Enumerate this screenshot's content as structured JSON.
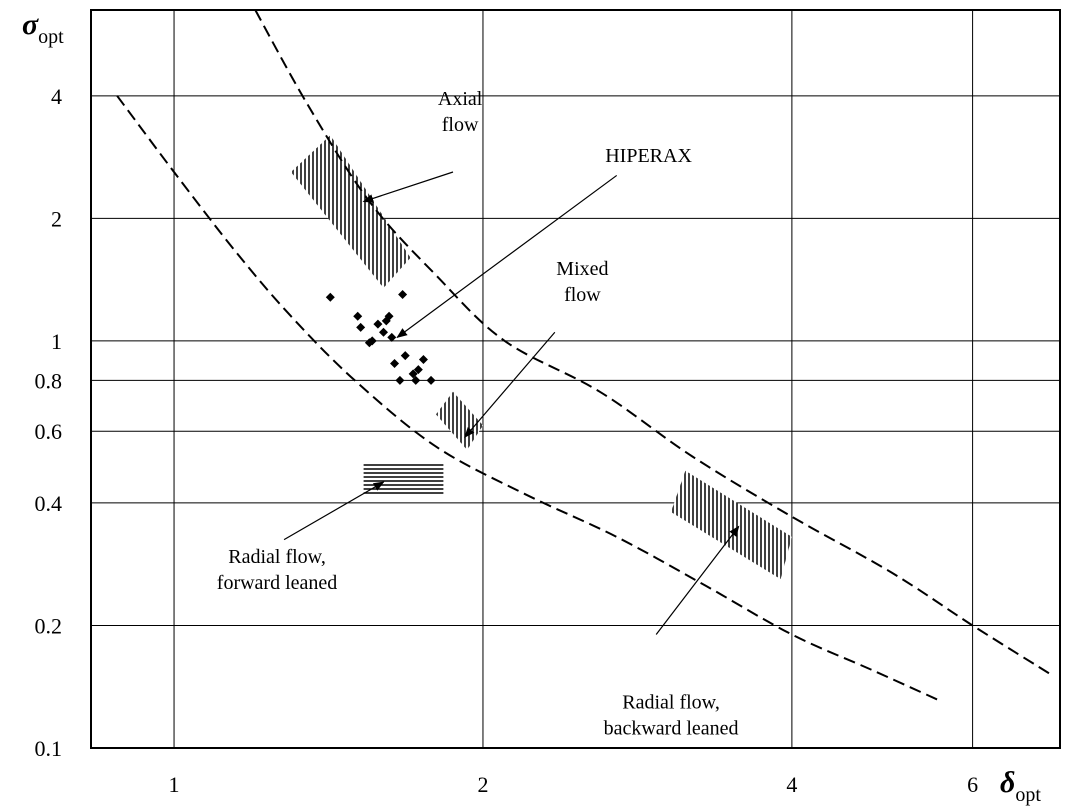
{
  "chart_data": {
    "type": "scatter",
    "title": "",
    "x_axis": {
      "label": "δ",
      "label_subscript": "opt",
      "scale": "log",
      "range": [
        0.83,
        7.3
      ],
      "ticks": [
        1,
        2,
        4,
        6
      ],
      "tick_labels": [
        "1",
        "2",
        "4",
        "6"
      ]
    },
    "y_axis": {
      "label": "σ",
      "label_subscript": "opt",
      "scale": "log",
      "range": [
        0.1,
        6.5
      ],
      "ticks": [
        0.1,
        0.2,
        0.4,
        0.6,
        0.8,
        1,
        2,
        4
      ],
      "tick_labels": [
        "0.1",
        "0.2",
        "0.4",
        "0.6",
        "0.8",
        "1",
        "2",
        "4"
      ]
    },
    "grid": true,
    "curves": [
      {
        "style": "dashed",
        "x": [
          0.88,
          1.0,
          1.15,
          1.3,
          1.5,
          1.8,
          2.2,
          2.7,
          3.3,
          4.0,
          4.8,
          5.6
        ],
        "y": [
          4.0,
          2.6,
          1.65,
          1.15,
          0.8,
          0.55,
          0.42,
          0.33,
          0.25,
          0.19,
          0.155,
          0.13
        ]
      },
      {
        "style": "dashed",
        "x": [
          1.2,
          1.35,
          1.55,
          1.8,
          2.1,
          2.6,
          3.2,
          4.0,
          5.0,
          6.0,
          7.2
        ],
        "y": [
          6.5,
          3.8,
          2.2,
          1.45,
          1.0,
          0.75,
          0.52,
          0.37,
          0.27,
          0.2,
          0.15
        ]
      }
    ],
    "regions": [
      {
        "label": "Axial flow",
        "hatch": "vertical",
        "x": [
          1.3,
          1.42,
          1.7,
          1.6
        ],
        "y": [
          2.6,
          3.2,
          1.6,
          1.35
        ]
      },
      {
        "label": "Mixed flow",
        "hatch": "vertical",
        "x": [
          1.8,
          1.87,
          2.0,
          1.93
        ],
        "y": [
          0.66,
          0.75,
          0.62,
          0.54
        ]
      },
      {
        "label": "Radial flow, forward leaned",
        "hatch": "horizontal",
        "x": [
          1.53,
          1.83,
          1.83,
          1.53
        ],
        "y": [
          0.5,
          0.5,
          0.42,
          0.42
        ]
      },
      {
        "label": "Radial flow, backward leaned",
        "hatch": "vertical",
        "x": [
          3.05,
          3.15,
          4.0,
          3.9
        ],
        "y": [
          0.38,
          0.48,
          0.33,
          0.26
        ]
      }
    ],
    "points": {
      "name": "HIPERAX",
      "x": [
        1.42,
        1.51,
        1.52,
        1.56,
        1.58,
        1.6,
        1.62,
        1.63,
        1.67,
        1.55,
        1.61,
        1.64,
        1.68,
        1.71,
        1.73,
        1.75,
        1.66,
        1.72,
        1.78
      ],
      "y": [
        1.28,
        1.15,
        1.08,
        1.0,
        1.1,
        1.05,
        1.15,
        1.02,
        1.3,
        0.99,
        1.12,
        0.88,
        0.92,
        0.83,
        0.85,
        0.9,
        0.8,
        0.8,
        0.8
      ]
    },
    "annotations": [
      {
        "text": [
          "Axial",
          "flow"
        ],
        "text_at": [
          1.9,
          3.8
        ],
        "arrow_from": [
          1.87,
          2.6
        ],
        "arrow_to": [
          1.53,
          2.2
        ]
      },
      {
        "text": [
          "HIPERAX"
        ],
        "text_at": [
          2.9,
          2.75
        ],
        "arrow_from": [
          2.7,
          2.55
        ],
        "arrow_to": [
          1.65,
          1.02
        ]
      },
      {
        "text": [
          "Mixed",
          "flow"
        ],
        "text_at": [
          2.5,
          1.45
        ],
        "arrow_from": [
          2.35,
          1.05
        ],
        "arrow_to": [
          1.92,
          0.58
        ]
      },
      {
        "text": [
          "Radial flow,",
          "forward leaned"
        ],
        "text_at": [
          1.26,
          0.285
        ],
        "arrow_from": [
          1.28,
          0.325
        ],
        "arrow_to": [
          1.6,
          0.45
        ]
      },
      {
        "text": [
          "Radial flow,",
          "backward leaned"
        ],
        "text_at": [
          3.05,
          0.125
        ],
        "arrow_from": [
          2.95,
          0.19
        ],
        "arrow_to": [
          3.55,
          0.35
        ]
      }
    ]
  }
}
